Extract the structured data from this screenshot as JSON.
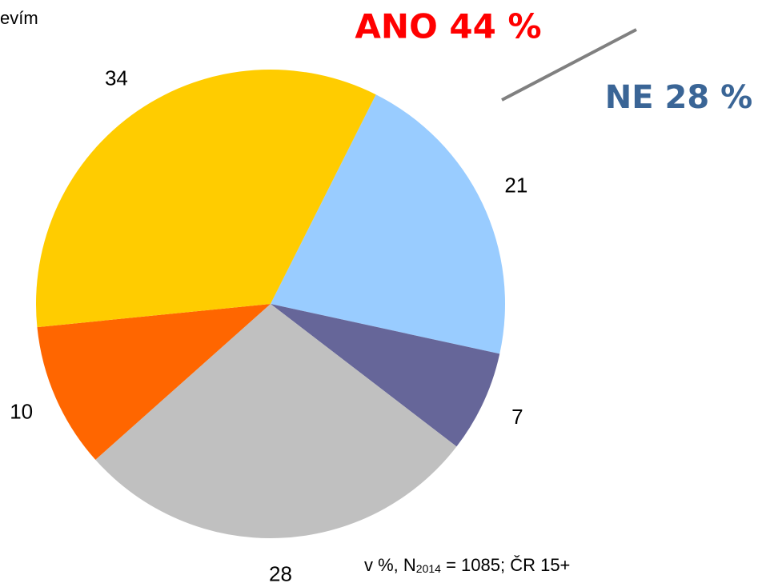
{
  "chart_data": {
    "type": "pie",
    "categories": [
      null,
      null,
      null,
      null,
      null
    ],
    "values": [
      21,
      7,
      28,
      10,
      34
    ],
    "colors": [
      "#99ccff",
      "#666699",
      "#c0c0c0",
      "#ff6600",
      "#ffcc00"
    ],
    "annotations": [
      "evím",
      "ANO 44 %",
      "NE 28 %"
    ],
    "note": [
      "v %, N",
      "2014",
      " = 1085; ČR 15+"
    ]
  }
}
